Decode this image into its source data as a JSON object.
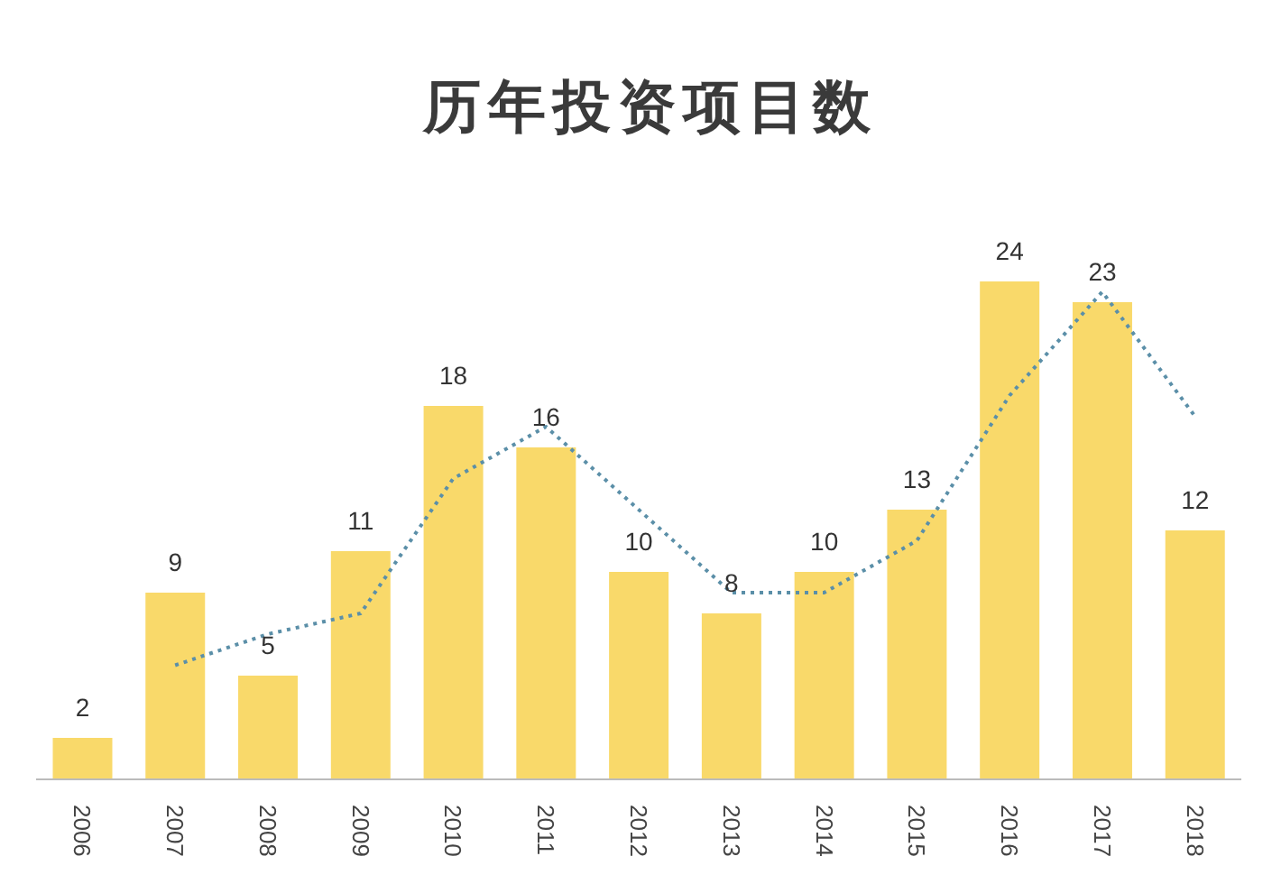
{
  "chart_data": {
    "type": "bar",
    "title": "历年投资项目数",
    "categories": [
      "2006",
      "2007",
      "2008",
      "2009",
      "2010",
      "2011",
      "2012",
      "2013",
      "2014",
      "2015",
      "2016",
      "2017",
      "2018"
    ],
    "series": [
      {
        "color": "#f9d96a",
        "values": [
          2,
          9,
          5,
          11,
          18,
          16,
          10,
          8,
          10,
          13,
          24,
          23,
          12
        ],
        "value_labels": [
          "2",
          "9",
          "5",
          "11",
          "18",
          "16",
          "10",
          "8",
          "10",
          "13",
          "24",
          "23",
          "12"
        ]
      },
      {
        "type": "line",
        "color": "#5b8fa8",
        "line_style": "dotted",
        "marker": "none",
        "values": [
          null,
          5.5,
          7,
          8,
          14.5,
          17,
          13,
          9,
          9,
          11.5,
          18.5,
          23.5,
          17.5
        ]
      }
    ],
    "grid": false,
    "legend": false
  }
}
